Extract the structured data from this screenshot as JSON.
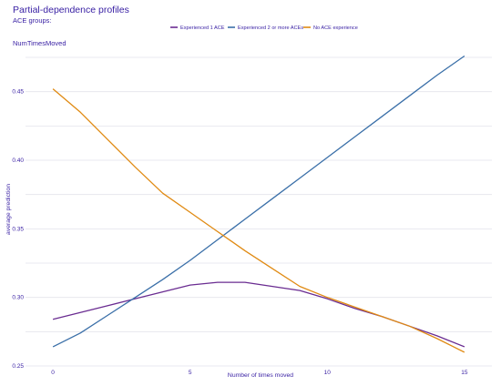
{
  "chart_data": {
    "type": "line",
    "title": "Partial-dependence profiles",
    "subtitle": "ACE groups:",
    "facet_label": "NumTimesMoved",
    "xlabel": "Number of times moved",
    "ylabel": "average prediction",
    "xlim": [
      -1,
      16
    ],
    "ylim": [
      0.25,
      0.477
    ],
    "x_ticks": [
      0,
      5,
      10,
      15
    ],
    "y_ticks": [
      0.25,
      0.3,
      0.35,
      0.4,
      0.45
    ],
    "y_tick_labels": [
      "0.25",
      "0.30",
      "0.35",
      "0.40",
      "0.45"
    ],
    "grid": true,
    "legend_position": "top",
    "series": [
      {
        "name": "Experienced 1 ACE",
        "color": "#6a2c91",
        "x": [
          0,
          1,
          2,
          3,
          4,
          5,
          6,
          7,
          8,
          9,
          10,
          11,
          12,
          13,
          14,
          15
        ],
        "values": [
          0.284,
          0.289,
          0.294,
          0.299,
          0.304,
          0.309,
          0.311,
          0.311,
          0.308,
          0.305,
          0.299,
          0.292,
          0.286,
          0.279,
          0.272,
          0.264
        ]
      },
      {
        "name": "Experienced 2 or more ACEs",
        "color": "#3a6fa8",
        "x": [
          0,
          1,
          2,
          3,
          4,
          5,
          6,
          7,
          8,
          9,
          10,
          11,
          12,
          13,
          14,
          15
        ],
        "values": [
          0.264,
          0.274,
          0.287,
          0.3,
          0.313,
          0.327,
          0.342,
          0.357,
          0.372,
          0.387,
          0.402,
          0.417,
          0.432,
          0.447,
          0.462,
          0.476
        ]
      },
      {
        "name": "No ACE experience",
        "color": "#e08a12",
        "x": [
          0,
          1,
          2,
          3,
          4,
          5,
          6,
          7,
          8,
          9,
          10,
          11,
          12,
          13,
          14,
          15
        ],
        "values": [
          0.452,
          0.435,
          0.415,
          0.395,
          0.376,
          0.362,
          0.348,
          0.334,
          0.321,
          0.308,
          0.3,
          0.293,
          0.286,
          0.279,
          0.27,
          0.26
        ]
      }
    ]
  }
}
